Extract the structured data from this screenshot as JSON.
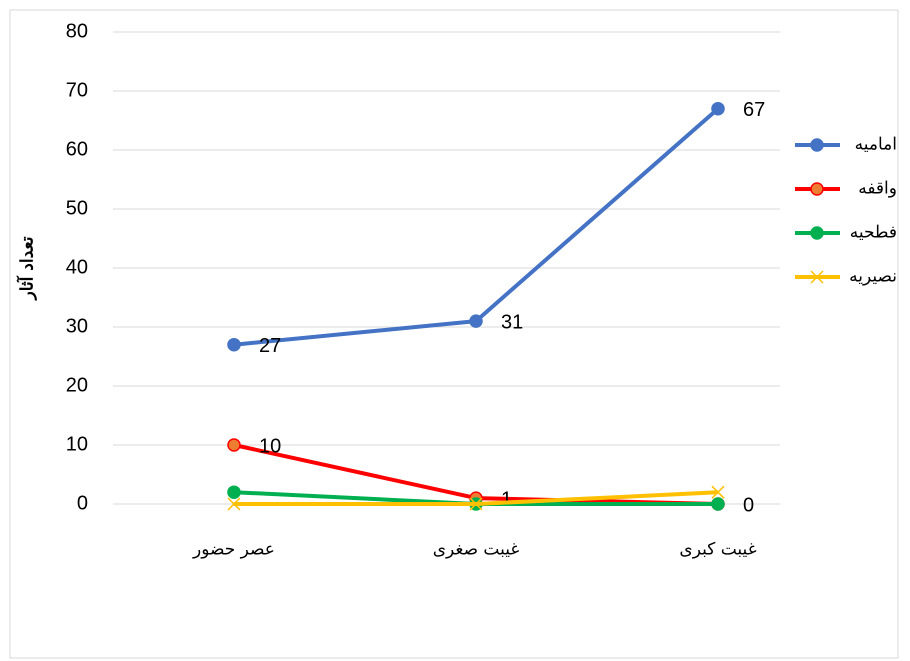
{
  "chart_data": {
    "type": "line",
    "y_label": "تعداد آثار",
    "categories": [
      "عصر حضور",
      "غیبت صغری",
      "غیبت کبری"
    ],
    "series": [
      {
        "name": "امامیه",
        "color": "#4472c4",
        "marker": "circle",
        "marker_fill": "#4472c4",
        "data_labels": true,
        "values": [
          27,
          31,
          67
        ]
      },
      {
        "name": "واقفه",
        "color": "#ff0000",
        "marker": "circle",
        "marker_fill": "#ed7d31",
        "data_labels": true,
        "values": [
          10,
          1,
          0
        ]
      },
      {
        "name": "فطحیه",
        "color": "#00b050",
        "marker": "circle",
        "marker_fill": "#00b050",
        "data_labels": false,
        "values": [
          2,
          0,
          0
        ]
      },
      {
        "name": "نصیریه",
        "color": "#ffc000",
        "marker": "x",
        "marker_fill": "#ffc000",
        "data_labels": false,
        "values": [
          0,
          0,
          2
        ]
      }
    ],
    "ylim": [
      0,
      80
    ],
    "yticks": [
      0,
      10,
      20,
      30,
      40,
      50,
      60,
      70,
      80
    ],
    "grid": true,
    "legend": "right"
  }
}
